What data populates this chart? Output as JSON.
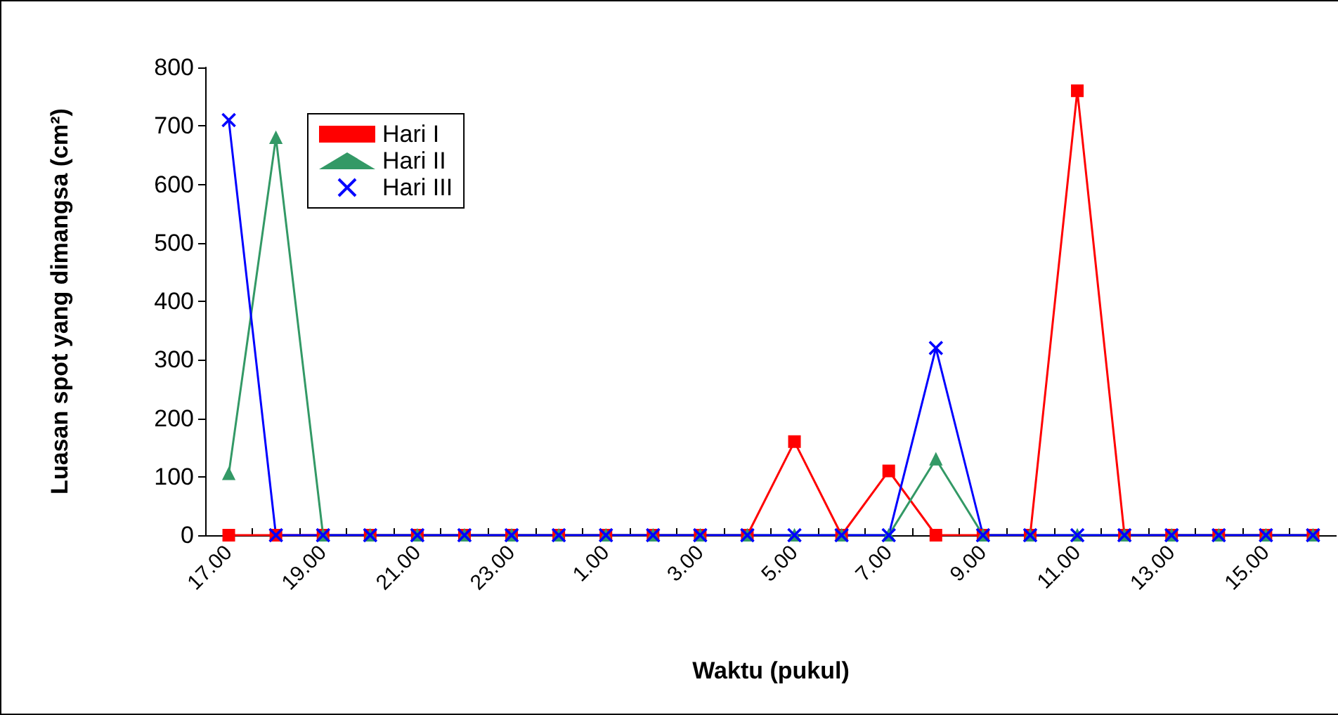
{
  "chart_data": {
    "type": "line",
    "xlabel": "Waktu (pukul)",
    "ylabel": "Luasan spot yang dimangsa (cm²)",
    "categories": [
      "17.00",
      null,
      "19.00",
      null,
      "21.00",
      null,
      "23.00",
      null,
      "1.00",
      null,
      "3.00",
      null,
      "5.00",
      null,
      "7.00",
      null,
      "9.00",
      null,
      "11.00",
      null,
      "13.00",
      null,
      "15.00",
      null
    ],
    "series": [
      {
        "name": "Hari I",
        "color": "#ff0000",
        "marker": "square",
        "values": [
          0,
          0,
          0,
          0,
          0,
          0,
          0,
          0,
          0,
          0,
          0,
          0,
          160,
          0,
          110,
          0,
          0,
          0,
          760,
          0,
          0,
          0,
          0,
          0
        ]
      },
      {
        "name": "Hari II",
        "color": "#339966",
        "marker": "triangle",
        "values": [
          105,
          680,
          0,
          0,
          0,
          0,
          0,
          0,
          0,
          0,
          0,
          0,
          0,
          0,
          0,
          130,
          0,
          0,
          0,
          0,
          0,
          0,
          0,
          0
        ]
      },
      {
        "name": "Hari III",
        "color": "#0000ff",
        "marker": "cross",
        "values": [
          710,
          0,
          0,
          0,
          0,
          0,
          0,
          0,
          0,
          0,
          0,
          0,
          0,
          0,
          0,
          320,
          0,
          0,
          0,
          0,
          0,
          0,
          0,
          0
        ]
      }
    ],
    "ylim": [
      0,
      800
    ],
    "yticks": [
      0,
      100,
      200,
      300,
      400,
      500,
      600,
      700,
      800
    ],
    "grid": false,
    "legend": "top left"
  }
}
